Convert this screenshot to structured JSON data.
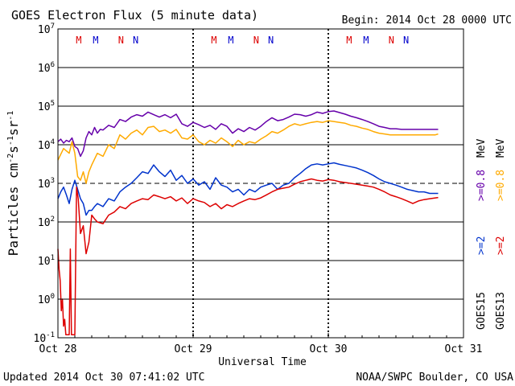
{
  "chart_data": {
    "type": "line",
    "title": "GOES Electron Flux (5 minute data)",
    "begin_label": "Begin: 2014 Oct 28 0000 UTC",
    "xlabel": "Universal Time",
    "ylabel_parts": [
      "Particles cm",
      "-2",
      "s",
      "-1",
      "sr",
      "-1"
    ],
    "x_ticks": [
      "Oct 28",
      "Oct 29",
      "Oct 30",
      "Oct 31"
    ],
    "xlim": [
      0,
      72
    ],
    "y_scale": "log",
    "ylim_exp": [
      -1,
      7
    ],
    "y_tick_base": "10",
    "y_tick_exps": [
      "-1",
      "0",
      "1",
      "2",
      "3",
      "4",
      "5",
      "6",
      "7"
    ],
    "threshold_exp": 3,
    "grid": true,
    "footer_left": "Updated 2014 Oct 30 07:41:02 UTC",
    "footer_right": "NOAA/SWPC Boulder, CO USA",
    "legend": {
      "goes13_label": "GOES13",
      "goes15_label": "GOES15",
      "goes13_ge2": ">=2",
      "goes13_ge08": ">=0.8",
      "goes15_ge2": ">=2",
      "goes15_ge08": ">=0.8",
      "unit": "MeV"
    },
    "local_time_markers": [
      {
        "hour": 3.7,
        "label": "M",
        "color": "#dd0000"
      },
      {
        "hour": 6.7,
        "label": "M",
        "color": "#0000cc"
      },
      {
        "hour": 11.2,
        "label": "N",
        "color": "#dd0000"
      },
      {
        "hour": 13.8,
        "label": "N",
        "color": "#0000cc"
      },
      {
        "hour": 27.7,
        "label": "M",
        "color": "#dd0000"
      },
      {
        "hour": 30.7,
        "label": "M",
        "color": "#0000cc"
      },
      {
        "hour": 35.2,
        "label": "N",
        "color": "#dd0000"
      },
      {
        "hour": 37.8,
        "label": "N",
        "color": "#0000cc"
      },
      {
        "hour": 51.7,
        "label": "M",
        "color": "#dd0000"
      },
      {
        "hour": 54.7,
        "label": "M",
        "color": "#0000cc"
      },
      {
        "hour": 59.2,
        "label": "N",
        "color": "#dd0000"
      },
      {
        "hour": 61.8,
        "label": "N",
        "color": "#0000cc"
      }
    ],
    "series": [
      {
        "color": "#6600aa",
        "x": [
          0,
          0.5,
          1,
          1.5,
          2,
          2.5,
          3,
          3.5,
          4,
          4.5,
          5,
          5.5,
          6,
          6.5,
          7,
          7.5,
          8,
          9,
          10,
          11,
          12,
          13,
          14,
          15,
          16,
          17,
          18,
          19,
          20,
          21,
          22,
          23,
          24,
          25,
          26,
          27,
          28,
          29,
          30,
          31,
          32,
          33,
          34,
          35,
          36,
          37,
          38,
          39,
          40,
          41,
          42,
          43,
          44,
          45,
          46,
          47,
          48,
          49,
          50,
          51,
          52,
          53,
          54,
          55,
          56,
          57,
          58,
          59,
          60,
          61,
          62,
          63,
          64,
          65,
          66,
          67,
          67.5
        ],
        "y": [
          12000,
          14000,
          11000,
          13000,
          12000,
          15000,
          9000,
          8000,
          5000,
          7000,
          15000,
          22000,
          18000,
          28000,
          20000,
          25000,
          24000,
          32000,
          28000,
          45000,
          40000,
          52000,
          60000,
          55000,
          70000,
          60000,
          52000,
          60000,
          50000,
          62000,
          35000,
          30000,
          38000,
          33000,
          28000,
          32000,
          25000,
          35000,
          30000,
          20000,
          26000,
          22000,
          28000,
          24000,
          30000,
          40000,
          50000,
          42000,
          45000,
          52000,
          62000,
          60000,
          55000,
          60000,
          70000,
          65000,
          72000,
          75000,
          68000,
          62000,
          55000,
          50000,
          45000,
          40000,
          35000,
          30000,
          28000,
          26000,
          26000,
          25000,
          25000,
          25000,
          25000,
          25000,
          25000,
          25000,
          25000
        ]
      },
      {
        "color": "#ffaa00",
        "x": [
          0,
          1,
          2,
          2.5,
          3,
          3.5,
          4,
          4.5,
          5,
          5.5,
          6,
          7,
          8,
          9,
          10,
          11,
          12,
          13,
          14,
          15,
          16,
          17,
          18,
          19,
          20,
          21,
          22,
          23,
          24,
          25,
          26,
          27,
          28,
          29,
          30,
          31,
          32,
          33,
          34,
          35,
          36,
          37,
          38,
          39,
          40,
          41,
          42,
          43,
          44,
          45,
          46,
          47,
          48,
          49,
          50,
          51,
          52,
          53,
          54,
          55,
          56,
          57,
          58,
          59,
          60,
          61,
          62,
          63,
          64,
          65,
          66,
          67,
          67.5
        ],
        "y": [
          4000,
          8000,
          6000,
          12000,
          6000,
          1500,
          1200,
          2000,
          1000,
          2000,
          3000,
          6000,
          5000,
          10000,
          8000,
          18000,
          14000,
          20000,
          24000,
          18000,
          28000,
          30000,
          22000,
          24000,
          20000,
          25000,
          15000,
          14000,
          18000,
          12000,
          10000,
          13000,
          11000,
          15000,
          12000,
          9000,
          13000,
          10000,
          12000,
          11000,
          14000,
          17000,
          22000,
          20000,
          24000,
          30000,
          35000,
          32000,
          35000,
          38000,
          40000,
          38000,
          42000,
          40000,
          38000,
          36000,
          32000,
          30000,
          27000,
          25000,
          22000,
          20000,
          19000,
          18000,
          18000,
          18000,
          18000,
          18000,
          18000,
          18000,
          18000,
          18000,
          19000
        ]
      },
      {
        "color": "#0033cc",
        "x": [
          0,
          0.5,
          1,
          1.5,
          2,
          2.5,
          3,
          3.5,
          4,
          4.5,
          5,
          5.5,
          6,
          6.5,
          7,
          8,
          9,
          10,
          11,
          12,
          13,
          14,
          15,
          16,
          17,
          18,
          19,
          20,
          21,
          22,
          23,
          24,
          25,
          26,
          27,
          28,
          29,
          30,
          31,
          32,
          33,
          34,
          35,
          36,
          37,
          38,
          39,
          40,
          41,
          42,
          43,
          44,
          45,
          46,
          47,
          48,
          49,
          50,
          51,
          52,
          53,
          54,
          55,
          56,
          57,
          58,
          59,
          60,
          61,
          62,
          63,
          64,
          65,
          66,
          67,
          67.5
        ],
        "y": [
          400,
          600,
          800,
          500,
          300,
          700,
          1200,
          700,
          400,
          300,
          150,
          200,
          200,
          250,
          300,
          250,
          400,
          350,
          600,
          800,
          1000,
          1400,
          2000,
          1800,
          3000,
          2000,
          1500,
          2200,
          1200,
          1600,
          1000,
          1300,
          900,
          1100,
          700,
          1400,
          900,
          800,
          600,
          700,
          500,
          700,
          600,
          800,
          900,
          1000,
          700,
          900,
          1000,
          1400,
          1800,
          2400,
          3000,
          3200,
          3000,
          3200,
          3400,
          3100,
          2900,
          2700,
          2500,
          2200,
          1900,
          1600,
          1300,
          1100,
          1000,
          900,
          800,
          700,
          650,
          600,
          600,
          550,
          550,
          550
        ]
      },
      {
        "color": "#dd0000",
        "x": [
          0,
          0.2,
          0.4,
          0.6,
          0.8,
          1,
          1.2,
          1.4,
          1.6,
          1.8,
          2,
          2.2,
          2.4,
          2.6,
          2.8,
          3,
          3.3,
          3.6,
          4,
          4.5,
          5,
          5.5,
          6,
          6.5,
          7,
          8,
          9,
          10,
          11,
          12,
          13,
          14,
          15,
          16,
          17,
          18,
          19,
          20,
          21,
          22,
          23,
          24,
          25,
          26,
          27,
          28,
          29,
          30,
          31,
          32,
          33,
          34,
          35,
          36,
          37,
          38,
          39,
          40,
          41,
          42,
          43,
          44,
          45,
          46,
          47,
          48,
          49,
          50,
          51,
          52,
          53,
          54,
          55,
          56,
          57,
          58,
          59,
          60,
          61,
          62,
          63,
          64,
          65,
          66,
          67,
          67.5
        ],
        "y": [
          20,
          6,
          3,
          0.5,
          1,
          0.2,
          0.3,
          0.12,
          0.12,
          0.12,
          0.12,
          20,
          0.12,
          0.12,
          0.12,
          0.12,
          800,
          400,
          50,
          80,
          15,
          30,
          150,
          120,
          100,
          90,
          150,
          180,
          250,
          220,
          300,
          350,
          400,
          380,
          500,
          450,
          400,
          450,
          350,
          420,
          300,
          400,
          350,
          320,
          250,
          300,
          220,
          280,
          250,
          300,
          350,
          400,
          380,
          420,
          500,
          600,
          700,
          750,
          800,
          950,
          1100,
          1200,
          1300,
          1200,
          1150,
          1250,
          1200,
          1100,
          1050,
          1000,
          950,
          900,
          850,
          800,
          700,
          600,
          500,
          450,
          400,
          350,
          300,
          350,
          380,
          400,
          420,
          430
        ]
      }
    ]
  }
}
